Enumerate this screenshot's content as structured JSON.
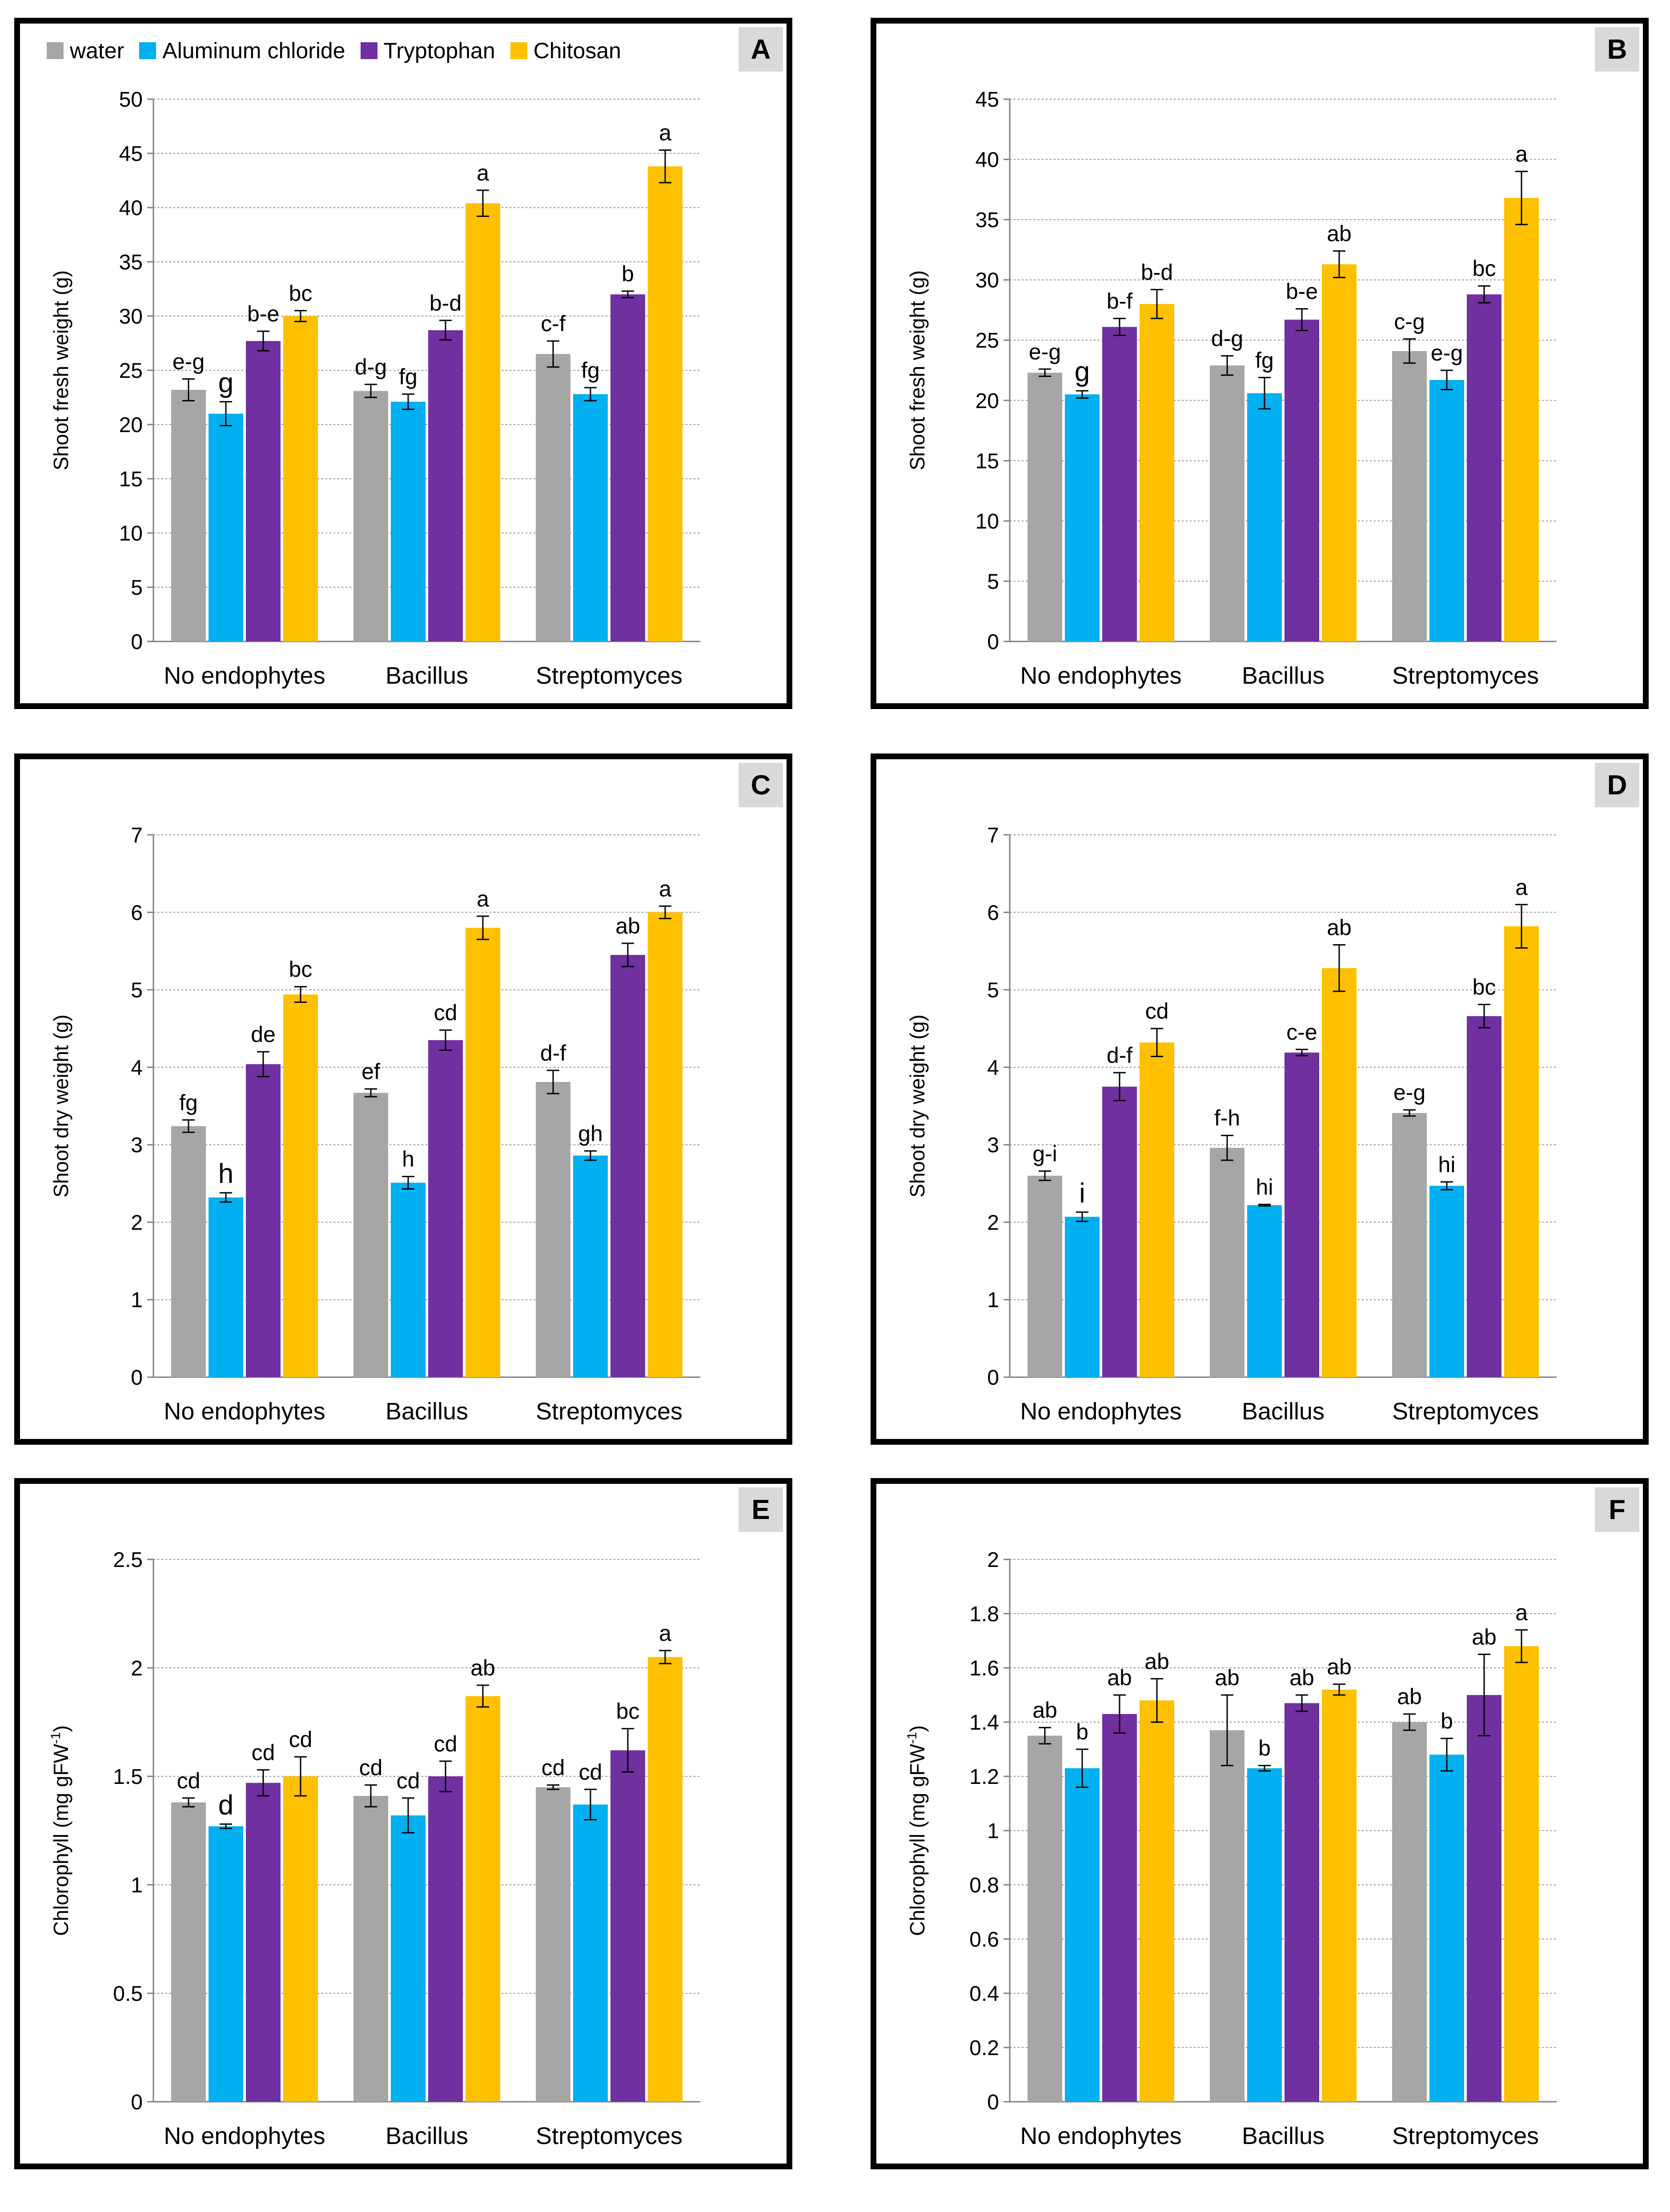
{
  "legend": [
    {
      "name": "water",
      "color": "#a6a6a6"
    },
    {
      "name": "Aluminum chloride",
      "color": "#00b0f0"
    },
    {
      "name": "Tryptophan",
      "color": "#7030a0"
    },
    {
      "name": "Chitosan",
      "color": "#ffc000"
    }
  ],
  "chart_data": [
    {
      "panel": "A",
      "type": "bar",
      "categories": [
        "No endophytes",
        "Bacillus",
        "Streptomyces"
      ],
      "ylabel": "Shoot fresh weight (g)",
      "ylim": [
        0,
        50
      ],
      "ystep": 5,
      "grid": true,
      "series": [
        {
          "name": "water",
          "values": [
            23.2,
            23.1,
            26.5
          ],
          "errors": [
            1.0,
            0.6,
            1.2
          ],
          "labels": [
            "e-g",
            "d-g",
            "c-f"
          ]
        },
        {
          "name": "Aluminum chloride",
          "values": [
            21.0,
            22.1,
            22.8
          ],
          "errors": [
            1.1,
            0.7,
            0.6
          ],
          "labels": [
            "g",
            "fg",
            "fg"
          ]
        },
        {
          "name": "Tryptophan",
          "values": [
            27.7,
            28.7,
            32.0
          ],
          "errors": [
            0.9,
            0.9,
            0.3
          ],
          "labels": [
            "b-e",
            "b-d",
            "b"
          ]
        },
        {
          "name": "Chitosan",
          "values": [
            30.0,
            40.4,
            43.8
          ],
          "errors": [
            0.5,
            1.2,
            1.5
          ],
          "labels": [
            "bc",
            "a",
            "a"
          ]
        }
      ]
    },
    {
      "panel": "B",
      "type": "bar",
      "categories": [
        "No endophytes",
        "Bacillus",
        "Streptomyces"
      ],
      "ylabel": "Shoot fresh weight (g)",
      "ylim": [
        0,
        45
      ],
      "ystep": 5,
      "grid": true,
      "series": [
        {
          "name": "water",
          "values": [
            22.3,
            22.9,
            24.1
          ],
          "errors": [
            0.3,
            0.8,
            1.0
          ],
          "labels": [
            "e-g",
            "d-g",
            "c-g"
          ]
        },
        {
          "name": "Aluminum chloride",
          "values": [
            20.5,
            20.6,
            21.7
          ],
          "errors": [
            0.3,
            1.3,
            0.8
          ],
          "labels": [
            "g",
            "fg",
            "e-g"
          ]
        },
        {
          "name": "Tryptophan",
          "values": [
            26.1,
            26.7,
            28.8
          ],
          "errors": [
            0.7,
            0.9,
            0.7
          ],
          "labels": [
            "b-f",
            "b-e",
            "bc"
          ]
        },
        {
          "name": "Chitosan",
          "values": [
            28.0,
            31.3,
            36.8
          ],
          "errors": [
            1.2,
            1.1,
            2.2
          ],
          "labels": [
            "b-d",
            "ab",
            "a"
          ]
        }
      ]
    },
    {
      "panel": "C",
      "type": "bar",
      "categories": [
        "No endophytes",
        "Bacillus",
        "Streptomyces"
      ],
      "ylabel": "Shoot dry weight (g)",
      "ylim": [
        0,
        7
      ],
      "ystep": 1,
      "grid": true,
      "series": [
        {
          "name": "water",
          "values": [
            3.24,
            3.67,
            3.81
          ],
          "errors": [
            0.08,
            0.05,
            0.15
          ],
          "labels": [
            "fg",
            "ef",
            "d-f"
          ]
        },
        {
          "name": "Aluminum chloride",
          "values": [
            2.32,
            2.51,
            2.86
          ],
          "errors": [
            0.06,
            0.08,
            0.06
          ],
          "labels": [
            "h",
            "h",
            "gh"
          ]
        },
        {
          "name": "Tryptophan",
          "values": [
            4.04,
            4.35,
            5.45
          ],
          "errors": [
            0.16,
            0.13,
            0.15
          ],
          "labels": [
            "de",
            "cd",
            "ab"
          ]
        },
        {
          "name": "Chitosan",
          "values": [
            4.94,
            5.8,
            6.0
          ],
          "errors": [
            0.1,
            0.15,
            0.08
          ],
          "labels": [
            "bc",
            "a",
            "a"
          ]
        }
      ]
    },
    {
      "panel": "D",
      "type": "bar",
      "categories": [
        "No endophytes",
        "Bacillus",
        "Streptomyces"
      ],
      "ylabel": "Shoot dry weight (g)",
      "ylim": [
        0,
        7
      ],
      "ystep": 1,
      "grid": true,
      "series": [
        {
          "name": "water",
          "values": [
            2.6,
            2.96,
            3.41
          ],
          "errors": [
            0.06,
            0.16,
            0.04
          ],
          "labels": [
            "g-i",
            "f-h",
            "e-g"
          ]
        },
        {
          "name": "Aluminum chloride",
          "values": [
            2.07,
            2.22,
            2.47
          ],
          "errors": [
            0.06,
            0.01,
            0.05
          ],
          "labels": [
            "i",
            "hi",
            "hi"
          ]
        },
        {
          "name": "Tryptophan",
          "values": [
            3.75,
            4.19,
            4.66
          ],
          "errors": [
            0.18,
            0.04,
            0.15
          ],
          "labels": [
            "d-f",
            "c-e",
            "bc"
          ]
        },
        {
          "name": "Chitosan",
          "values": [
            4.32,
            5.28,
            5.82
          ],
          "errors": [
            0.18,
            0.3,
            0.28
          ],
          "labels": [
            "cd",
            "ab",
            "a"
          ]
        }
      ]
    },
    {
      "panel": "E",
      "type": "bar",
      "categories": [
        "No endophytes",
        "Bacillus",
        "Streptomyces"
      ],
      "ylabel": "Chlorophyll (mg gFW-1)",
      "ylim": [
        0,
        2.5
      ],
      "ystep": 0.5,
      "grid": true,
      "series": [
        {
          "name": "water",
          "values": [
            1.38,
            1.41,
            1.45
          ],
          "errors": [
            0.02,
            0.05,
            0.01
          ],
          "labels": [
            "cd",
            "cd",
            "cd"
          ]
        },
        {
          "name": "Aluminum chloride",
          "values": [
            1.27,
            1.32,
            1.37
          ],
          "errors": [
            0.01,
            0.08,
            0.07
          ],
          "labels": [
            "d",
            "cd",
            "cd"
          ]
        },
        {
          "name": "Tryptophan",
          "values": [
            1.47,
            1.5,
            1.62
          ],
          "errors": [
            0.06,
            0.07,
            0.1
          ],
          "labels": [
            "cd",
            "cd",
            "bc"
          ]
        },
        {
          "name": "Chitosan",
          "values": [
            1.5,
            1.87,
            2.05
          ],
          "errors": [
            0.09,
            0.05,
            0.03
          ],
          "labels": [
            "cd",
            "ab",
            "a"
          ]
        }
      ]
    },
    {
      "panel": "F",
      "type": "bar",
      "categories": [
        "No endophytes",
        "Bacillus",
        "Streptomyces"
      ],
      "ylabel": "Chlorophyll (mg gFW-1)",
      "ylim": [
        0,
        2
      ],
      "ystep": 0.2,
      "grid": true,
      "series": [
        {
          "name": "water",
          "values": [
            1.35,
            1.37,
            1.4
          ],
          "errors": [
            0.03,
            0.13,
            0.03
          ],
          "labels": [
            "ab",
            "ab",
            "ab"
          ]
        },
        {
          "name": "Aluminum chloride",
          "values": [
            1.23,
            1.23,
            1.28
          ],
          "errors": [
            0.07,
            0.01,
            0.06
          ],
          "labels": [
            "b",
            "b",
            "b"
          ]
        },
        {
          "name": "Tryptophan",
          "values": [
            1.43,
            1.47,
            1.5
          ],
          "errors": [
            0.07,
            0.03,
            0.15
          ],
          "labels": [
            "ab",
            "ab",
            "ab"
          ]
        },
        {
          "name": "Chitosan",
          "values": [
            1.48,
            1.52,
            1.68
          ],
          "errors": [
            0.08,
            0.02,
            0.06
          ],
          "labels": [
            "ab",
            "ab",
            "a"
          ]
        }
      ]
    }
  ]
}
